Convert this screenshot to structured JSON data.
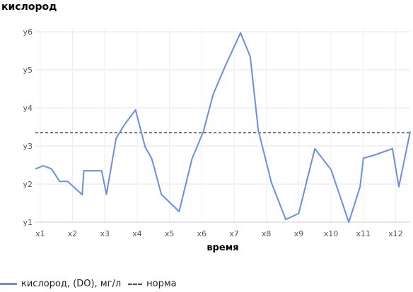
{
  "chart_data": {
    "type": "line",
    "ylabel": "кислород",
    "xlabel": "время",
    "x_ticks": [
      "x1",
      "x2",
      "x3",
      "x4",
      "x5",
      "x6",
      "x7",
      "x8",
      "x9",
      "x10",
      "x11",
      "x12"
    ],
    "y_ticks": [
      "y1",
      "y2",
      "y3",
      "y4",
      "y5",
      "y6"
    ],
    "ylim": [
      1,
      6
    ],
    "xlim": [
      0.85,
      12.45
    ],
    "grid": true,
    "legend_position": "bottom-left",
    "series": [
      {
        "name": "кислород, (DO), мг/л",
        "color": "#6a8ee4",
        "points": [
          [
            0.85,
            2.4
          ],
          [
            1.1,
            2.48
          ],
          [
            1.35,
            2.4
          ],
          [
            1.6,
            2.07
          ],
          [
            1.85,
            2.07
          ],
          [
            2.3,
            1.72
          ],
          [
            2.35,
            2.35
          ],
          [
            2.5,
            2.35
          ],
          [
            2.9,
            2.35
          ],
          [
            3.05,
            1.73
          ],
          [
            3.35,
            3.2
          ],
          [
            3.6,
            3.55
          ],
          [
            3.95,
            3.95
          ],
          [
            4.25,
            2.97
          ],
          [
            4.45,
            2.67
          ],
          [
            4.75,
            1.73
          ],
          [
            5.3,
            1.28
          ],
          [
            5.7,
            2.67
          ],
          [
            6.05,
            3.38
          ],
          [
            6.35,
            4.35
          ],
          [
            6.7,
            5.05
          ],
          [
            7.2,
            5.97
          ],
          [
            7.5,
            5.35
          ],
          [
            7.75,
            3.4
          ],
          [
            8.05,
            2.4
          ],
          [
            8.15,
            2.05
          ],
          [
            8.6,
            1.07
          ],
          [
            9.0,
            1.23
          ],
          [
            9.5,
            2.93
          ],
          [
            10.0,
            2.38
          ],
          [
            10.55,
            1.0
          ],
          [
            10.9,
            1.93
          ],
          [
            11.0,
            2.68
          ],
          [
            11.3,
            2.75
          ],
          [
            11.9,
            2.93
          ],
          [
            12.1,
            1.93
          ],
          [
            12.45,
            3.38
          ]
        ]
      }
    ],
    "reference_line": {
      "name": "норма",
      "y": 3.35,
      "color": "#3d4766"
    }
  }
}
